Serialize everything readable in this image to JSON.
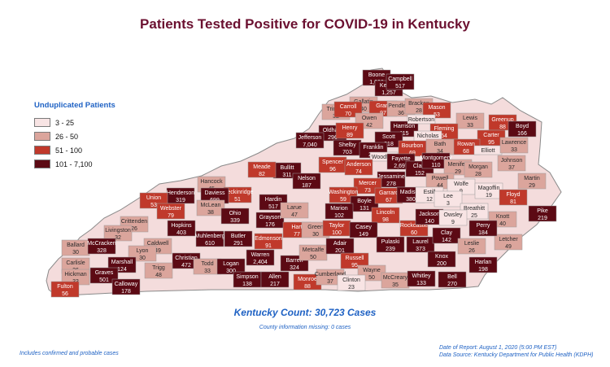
{
  "title": "Patients Tested Positive for COVID-19 in Kentucky",
  "legend": {
    "title": "Unduplicated Patients",
    "items": [
      {
        "label": "3 - 25",
        "color": "#f8e4e4"
      },
      {
        "label": "26 - 50",
        "color": "#dba59c"
      },
      {
        "label": "51 - 100",
        "color": "#c0392b"
      },
      {
        "label": "101 - 7,100",
        "color": "#5c0a14"
      }
    ]
  },
  "counties": [
    {
      "name": "Boone",
      "value": "1,006"
    },
    {
      "name": "Kenton",
      "value": "1,257"
    },
    {
      "name": "Campbell",
      "value": "517"
    },
    {
      "name": "Gallatin",
      "value": "40"
    },
    {
      "name": "Grant",
      "value": "97"
    },
    {
      "name": "Pendleton",
      "value": "36"
    },
    {
      "name": "Bracken",
      "value": "28"
    },
    {
      "name": "Mason",
      "value": "53"
    },
    {
      "name": "Lewis",
      "value": "33"
    },
    {
      "name": "Greenup",
      "value": "88"
    },
    {
      "name": "Boyd",
      "value": "166"
    },
    {
      "name": "Trimble",
      "value": "32"
    },
    {
      "name": "Carroll",
      "value": "70"
    },
    {
      "name": "Owen",
      "value": "42"
    },
    {
      "name": "Harrison",
      "value": "115"
    },
    {
      "name": "Robertson",
      "value": ""
    },
    {
      "name": "Fleming",
      "value": "54"
    },
    {
      "name": "Carter",
      "value": "95"
    },
    {
      "name": "Oldham",
      "value": "296"
    },
    {
      "name": "Henry",
      "value": "89"
    },
    {
      "name": "Scott",
      "value": "318"
    },
    {
      "name": "Nicholas",
      "value": "20"
    },
    {
      "name": "Rowan",
      "value": "68"
    },
    {
      "name": "Elliott",
      "value": ""
    },
    {
      "name": "Lawrence",
      "value": "33"
    },
    {
      "name": "Jefferson",
      "value": "7,040"
    },
    {
      "name": "Shelby",
      "value": "703"
    },
    {
      "name": "Franklin",
      "value": "250"
    },
    {
      "name": "Bourbon",
      "value": "69"
    },
    {
      "name": "Bath",
      "value": "34"
    },
    {
      "name": "Woodford",
      "value": ""
    },
    {
      "name": "Fayette",
      "value": "2,697"
    },
    {
      "name": "Clark",
      "value": "152"
    },
    {
      "name": "Montgomery",
      "value": "110"
    },
    {
      "name": "Menifee",
      "value": "29"
    },
    {
      "name": "Morgan",
      "value": "28"
    },
    {
      "name": "Johnson",
      "value": "37"
    },
    {
      "name": "Martin",
      "value": "29"
    },
    {
      "name": "Spencer",
      "value": "96"
    },
    {
      "name": "Anderson",
      "value": "74"
    },
    {
      "name": "Bullitt",
      "value": "311"
    },
    {
      "name": "Jessamine",
      "value": "278"
    },
    {
      "name": "Powell",
      "value": "44"
    },
    {
      "name": "Wolfe",
      "value": "9"
    },
    {
      "name": "Magoffin",
      "value": "19"
    },
    {
      "name": "Floyd",
      "value": "81"
    },
    {
      "name": "Pike",
      "value": "219"
    },
    {
      "name": "Meade",
      "value": "82"
    },
    {
      "name": "Nelson",
      "value": "187"
    },
    {
      "name": "Mercer",
      "value": "73"
    },
    {
      "name": "Hancock",
      "value": "45"
    },
    {
      "name": "Breckinridge",
      "value": "51"
    },
    {
      "name": "Hardin",
      "value": "517"
    },
    {
      "name": "Washington",
      "value": "59"
    },
    {
      "name": "Boyle",
      "value": "131"
    },
    {
      "name": "Garrard",
      "value": "67"
    },
    {
      "name": "Madison",
      "value": "380"
    },
    {
      "name": "Estill",
      "value": "12"
    },
    {
      "name": "Lee",
      "value": "3"
    },
    {
      "name": "Breathitt",
      "value": "25"
    },
    {
      "name": "Knott",
      "value": "40"
    },
    {
      "name": "Letcher",
      "value": "49"
    },
    {
      "name": "Henderson",
      "value": "319"
    },
    {
      "name": "Daviess",
      "value": "699"
    },
    {
      "name": "Union",
      "value": "53"
    },
    {
      "name": "Webster",
      "value": "79"
    },
    {
      "name": "McLean",
      "value": "38"
    },
    {
      "name": "Ohio",
      "value": "339"
    },
    {
      "name": "Grayson",
      "value": "176"
    },
    {
      "name": "Larue",
      "value": "47"
    },
    {
      "name": "Marion",
      "value": "102"
    },
    {
      "name": "Lincoln",
      "value": "98"
    },
    {
      "name": "Rockcastle",
      "value": "60"
    },
    {
      "name": "Jackson",
      "value": "140"
    },
    {
      "name": "Owsley",
      "value": "9"
    },
    {
      "name": "Perry",
      "value": "184"
    },
    {
      "name": "Crittenden",
      "value": "26"
    },
    {
      "name": "Hopkins",
      "value": "403"
    },
    {
      "name": "Livingston",
      "value": "32"
    },
    {
      "name": "Caldwell",
      "value": "49"
    },
    {
      "name": "Muhlenberg",
      "value": "610"
    },
    {
      "name": "Butler",
      "value": "291"
    },
    {
      "name": "Edmonson",
      "value": "91"
    },
    {
      "name": "Hart",
      "value": "77"
    },
    {
      "name": "Green",
      "value": "30"
    },
    {
      "name": "Taylor",
      "value": "100"
    },
    {
      "name": "Casey",
      "value": "149"
    },
    {
      "name": "Pulaski",
      "value": "239"
    },
    {
      "name": "Laurel",
      "value": "373"
    },
    {
      "name": "Clay",
      "value": "142"
    },
    {
      "name": "Leslie",
      "value": "26"
    },
    {
      "name": "Ballard",
      "value": "30"
    },
    {
      "name": "McCracken",
      "value": "328"
    },
    {
      "name": "Lyon",
      "value": "30"
    },
    {
      "name": "Christian",
      "value": "472"
    },
    {
      "name": "Todd",
      "value": "33"
    },
    {
      "name": "Logan",
      "value": "300"
    },
    {
      "name": "Warren",
      "value": "2,404"
    },
    {
      "name": "Barren",
      "value": "324"
    },
    {
      "name": "Metcalfe",
      "value": "50"
    },
    {
      "name": "Adair",
      "value": "201"
    },
    {
      "name": "Russell",
      "value": "95"
    },
    {
      "name": "Wayne",
      "value": "50"
    },
    {
      "name": "Knox",
      "value": "200"
    },
    {
      "name": "Harlan",
      "value": "198"
    },
    {
      "name": "Carlisle",
      "value": "26"
    },
    {
      "name": "Marshall",
      "value": "124"
    },
    {
      "name": "Trigg",
      "value": "48"
    },
    {
      "name": "Hickman",
      "value": "33"
    },
    {
      "name": "Graves",
      "value": "501"
    },
    {
      "name": "Calloway",
      "value": "178"
    },
    {
      "name": "Simpson",
      "value": "138"
    },
    {
      "name": "Allen",
      "value": "217"
    },
    {
      "name": "Monroe",
      "value": "88"
    },
    {
      "name": "Cumberland",
      "value": "37"
    },
    {
      "name": "Clinton",
      "value": "23"
    },
    {
      "name": "McCreary",
      "value": "35"
    },
    {
      "name": "Whitley",
      "value": "133"
    },
    {
      "name": "Bell",
      "value": "270"
    },
    {
      "name": "Fulton",
      "value": "56"
    }
  ],
  "total_count": "Kentucky Count: 30,723 Cases",
  "missing_note": "County information missing: 0 cases",
  "footnote": "Includes confirmed and probable cases",
  "report_date": "Date of Report: August 1, 2020 (5:00 PM EST)",
  "data_source": "Data Source: Kentucky Department for Public Health (KDPH)"
}
